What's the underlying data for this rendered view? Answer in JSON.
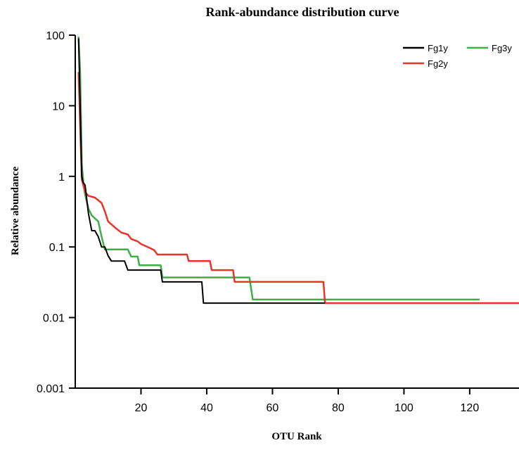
{
  "chart_data": {
    "type": "line",
    "title": "Rank-abundance distribution curve",
    "xlabel": "OTU Rank",
    "ylabel": "Relative abundance",
    "xlim": [
      0,
      135
    ],
    "ylim": [
      0.001,
      100
    ],
    "yscale": "log",
    "grid": false,
    "legend_position": "top-right",
    "x_ticks": [
      20,
      40,
      60,
      80,
      100,
      120
    ],
    "x_tick_labels": [
      "20",
      "40",
      "60",
      "80",
      "100",
      "120"
    ],
    "y_ticks": [
      0.001,
      0.01,
      0.1,
      1,
      10,
      100
    ],
    "y_tick_labels": [
      "0.001",
      "0.01",
      "0.1",
      "1",
      "10",
      "100"
    ],
    "series": [
      {
        "name": "Fg1y",
        "color": "#000000",
        "points": [
          [
            1,
            90
          ],
          [
            1.5,
            10
          ],
          [
            2,
            1.0
          ],
          [
            2.4,
            0.82
          ],
          [
            3,
            0.75
          ],
          [
            4,
            0.3
          ],
          [
            5,
            0.17
          ],
          [
            6,
            0.17
          ],
          [
            7,
            0.14
          ],
          [
            8,
            0.1
          ],
          [
            9,
            0.1
          ],
          [
            10,
            0.075
          ],
          [
            11,
            0.063
          ],
          [
            13,
            0.063
          ],
          [
            15,
            0.063
          ],
          [
            16,
            0.047
          ],
          [
            18,
            0.047
          ],
          [
            26,
            0.047
          ],
          [
            26.5,
            0.032
          ],
          [
            38.5,
            0.032
          ],
          [
            39,
            0.016
          ],
          [
            76,
            0.016
          ]
        ]
      },
      {
        "name": "Fg2y",
        "color": "#e8352a",
        "points": [
          [
            1,
            30
          ],
          [
            1.5,
            5
          ],
          [
            2,
            0.9
          ],
          [
            3,
            0.6
          ],
          [
            4,
            0.53
          ],
          [
            6,
            0.5
          ],
          [
            8,
            0.42
          ],
          [
            9,
            0.32
          ],
          [
            10,
            0.23
          ],
          [
            12,
            0.19
          ],
          [
            14,
            0.16
          ],
          [
            16,
            0.15
          ],
          [
            17,
            0.13
          ],
          [
            19,
            0.12
          ],
          [
            20,
            0.11
          ],
          [
            23,
            0.095
          ],
          [
            24,
            0.09
          ],
          [
            25,
            0.078
          ],
          [
            34,
            0.078
          ],
          [
            34.5,
            0.063
          ],
          [
            41,
            0.063
          ],
          [
            41.5,
            0.047
          ],
          [
            48,
            0.047
          ],
          [
            48.5,
            0.032
          ],
          [
            75.5,
            0.032
          ],
          [
            76,
            0.016
          ],
          [
            135,
            0.016
          ]
        ]
      },
      {
        "name": "Fg3y",
        "color": "#3fae49",
        "points": [
          [
            1,
            95
          ],
          [
            1.5,
            30
          ],
          [
            2,
            1.5
          ],
          [
            2.5,
            0.8
          ],
          [
            3,
            0.55
          ],
          [
            4,
            0.35
          ],
          [
            5,
            0.28
          ],
          [
            7,
            0.23
          ],
          [
            8,
            0.14
          ],
          [
            9,
            0.092
          ],
          [
            16,
            0.092
          ],
          [
            17,
            0.073
          ],
          [
            19,
            0.073
          ],
          [
            19.5,
            0.055
          ],
          [
            26,
            0.055
          ],
          [
            26.5,
            0.037
          ],
          [
            53,
            0.037
          ],
          [
            54,
            0.018
          ],
          [
            123,
            0.018
          ]
        ]
      }
    ]
  }
}
